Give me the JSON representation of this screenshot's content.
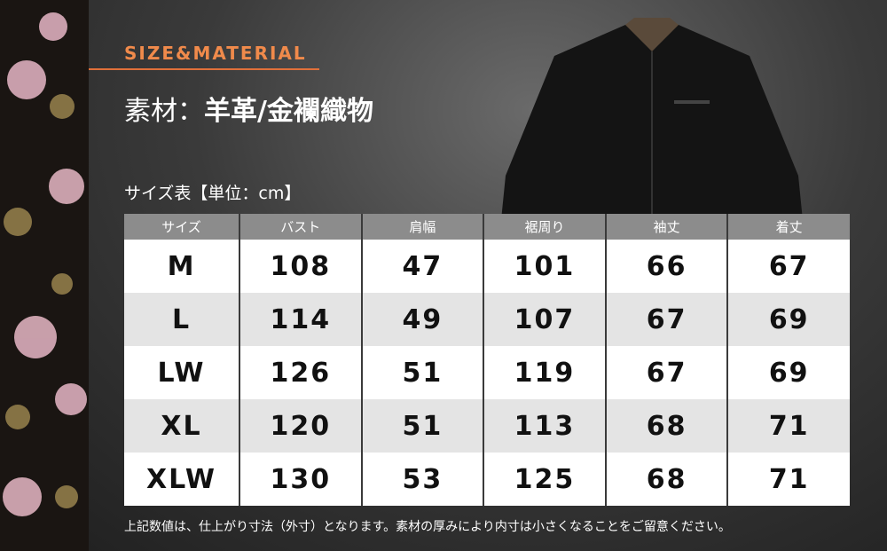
{
  "section_label": "SIZE&MATERIAL",
  "material": {
    "label": "素材：",
    "value": "羊革/金襴織物"
  },
  "table_caption": "サイズ表【単位：cm】",
  "table": {
    "headers": [
      "サイズ",
      "バスト",
      "肩幅",
      "裾周り",
      "袖丈",
      "着丈"
    ],
    "rows": [
      [
        "M",
        108,
        47,
        101,
        66,
        67
      ],
      [
        "L",
        114,
        49,
        107,
        67,
        69
      ],
      [
        "LW",
        126,
        51,
        119,
        67,
        69
      ],
      [
        "XL",
        120,
        51,
        113,
        68,
        71
      ],
      [
        "XLW",
        130,
        53,
        125,
        68,
        71
      ]
    ]
  },
  "note": "上記数値は、仕上がり寸法（外寸）となります。素材の厚みにより内寸は小さくなることをご留意ください。"
}
